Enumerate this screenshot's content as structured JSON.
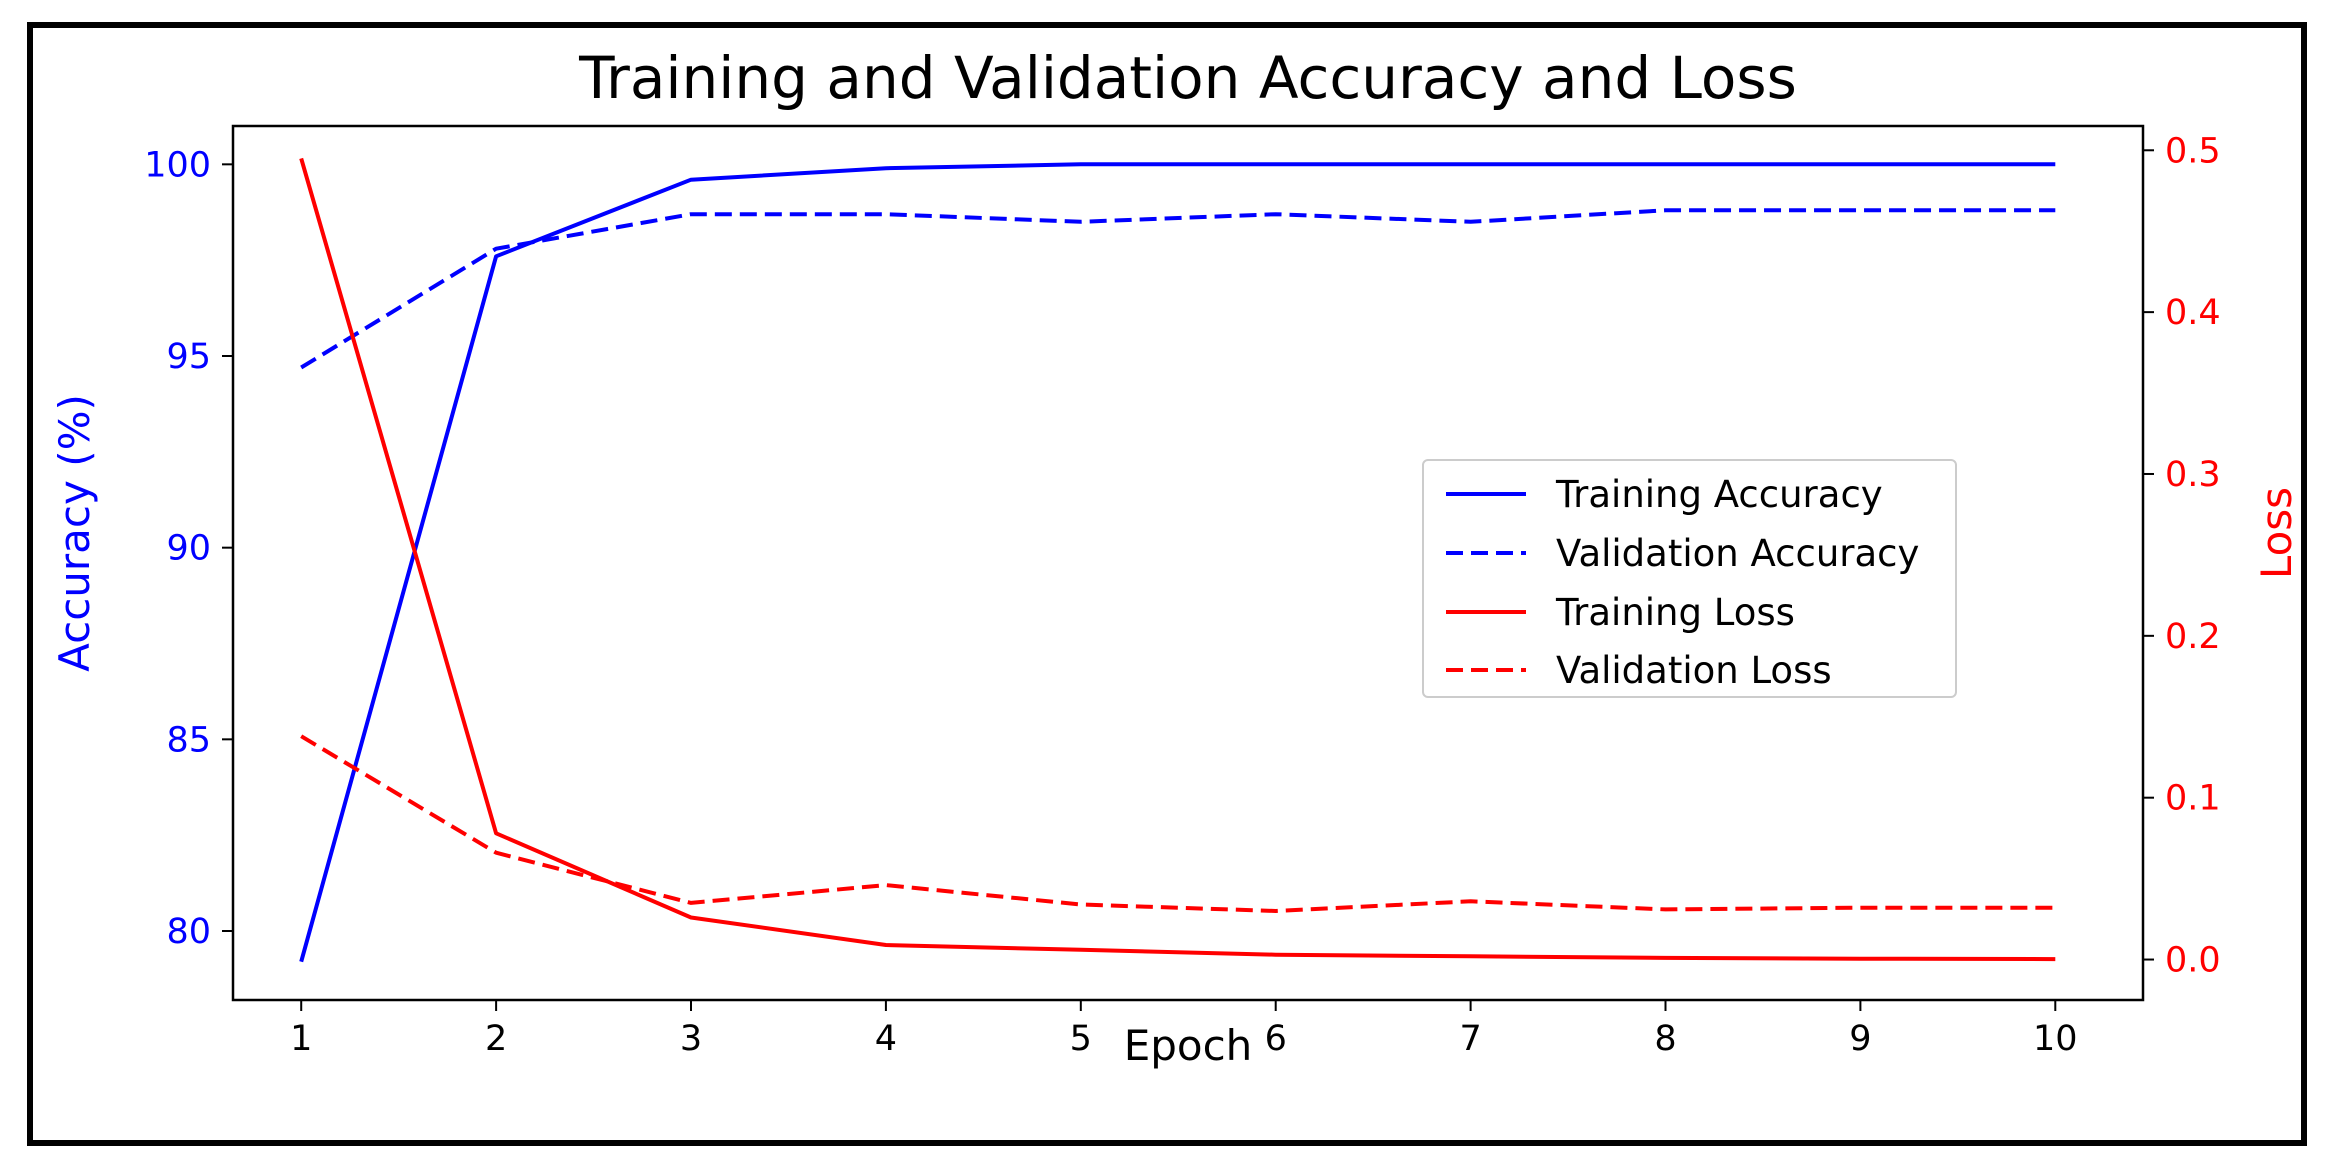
{
  "chart_data": {
    "type": "line",
    "title": "Training and Validation Accuracy and Loss",
    "xlabel": "Epoch",
    "ylabel_left": "Accuracy (%)",
    "ylabel_right": "Loss",
    "x": [
      1,
      2,
      3,
      4,
      5,
      6,
      7,
      8,
      9,
      10
    ],
    "xlim": [
      0.65,
      10.45
    ],
    "ylim_left": [
      78.2,
      101.0
    ],
    "ylim_right": [
      -0.025,
      0.515
    ],
    "yticks_left": [
      80,
      85,
      90,
      95,
      100
    ],
    "yticks_right": [
      0.0,
      0.1,
      0.2,
      0.3,
      0.4,
      0.5
    ],
    "legend_position": "center-right",
    "colors": {
      "left_axis": "#0000ff",
      "right_axis": "#ff0000"
    },
    "series": [
      {
        "name": "Training Accuracy",
        "axis": "left",
        "color": "#0000ff",
        "style": "solid",
        "values": [
          79.2,
          97.6,
          99.6,
          99.9,
          100.0,
          100.0,
          100.0,
          100.0,
          100.0,
          100.0
        ]
      },
      {
        "name": "Validation Accuracy",
        "axis": "left",
        "color": "#0000ff",
        "style": "dashed",
        "values": [
          94.7,
          97.8,
          98.7,
          98.7,
          98.5,
          98.7,
          98.5,
          98.8,
          98.8,
          98.8
        ]
      },
      {
        "name": "Training Loss",
        "axis": "right",
        "color": "#ff0000",
        "style": "solid",
        "values": [
          0.495,
          0.078,
          0.026,
          0.009,
          0.006,
          0.003,
          0.002,
          0.001,
          0.0005,
          0.0003
        ]
      },
      {
        "name": "Validation Loss",
        "axis": "right",
        "color": "#ff0000",
        "style": "dashed",
        "values": [
          0.138,
          0.066,
          0.035,
          0.046,
          0.034,
          0.03,
          0.036,
          0.031,
          0.032,
          0.032
        ]
      }
    ]
  }
}
